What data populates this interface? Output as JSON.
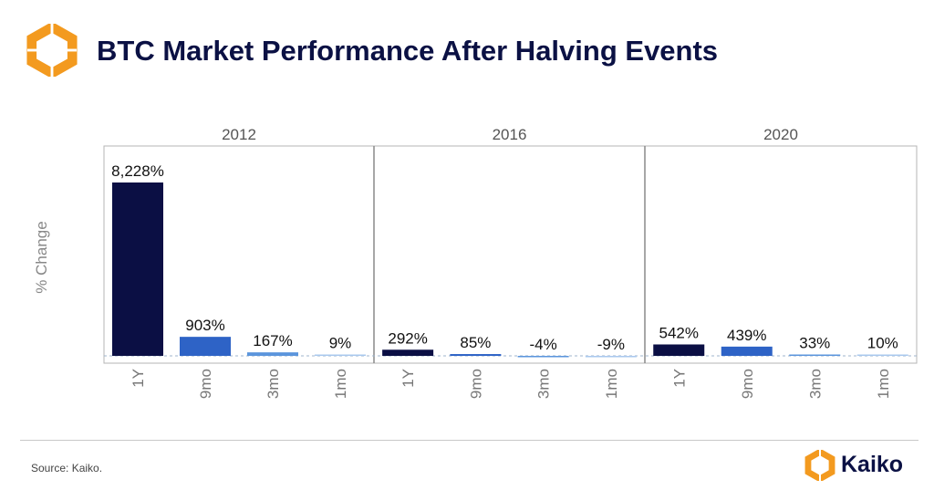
{
  "header": {
    "title": "BTC Market Performance After Halving Events",
    "logo_icon": "kaiko-hexagon-logo-icon"
  },
  "colors": {
    "title": "#0b1144",
    "logo_orange": "#f39a1f",
    "logo_orange_light": "#f6b24a",
    "series": [
      "#0b0f44",
      "#2e63c6",
      "#5b95dc",
      "#a9c8ee"
    ]
  },
  "chart_data": {
    "type": "bar",
    "ylabel": "% Change",
    "categories": [
      "1Y",
      "9mo",
      "3mo",
      "1mo"
    ],
    "facets": [
      {
        "name": "2012",
        "values": [
          8228,
          903,
          167,
          9
        ],
        "labels": [
          "8,228%",
          "903%",
          "167%",
          "9%"
        ]
      },
      {
        "name": "2016",
        "values": [
          292,
          85,
          -4,
          -9
        ],
        "labels": [
          "292%",
          "85%",
          "-4%",
          "-9%"
        ]
      },
      {
        "name": "2020",
        "values": [
          542,
          439,
          33,
          10
        ],
        "labels": [
          "542%",
          "439%",
          "33%",
          "10%"
        ]
      }
    ],
    "ylim": [
      -100,
      8300
    ],
    "grid": false,
    "zero_line": "dashed"
  },
  "footer": {
    "source": "Source: Kaiko.",
    "brand": "Kaiko",
    "brand_icon": "kaiko-hexagon-logo-icon"
  }
}
